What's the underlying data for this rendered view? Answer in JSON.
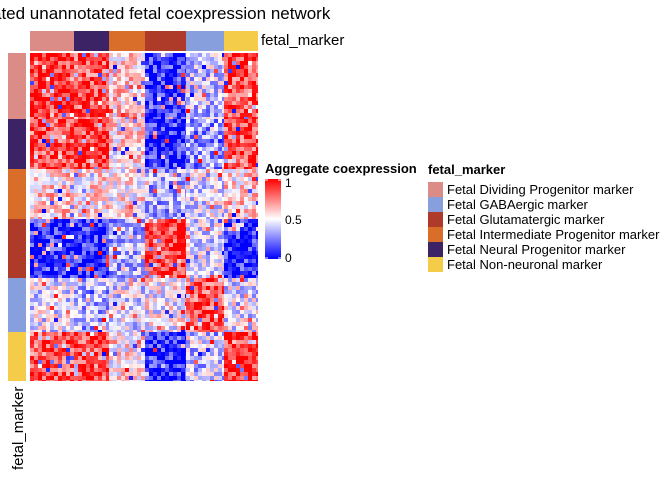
{
  "title": "ated unannotated fetal coexpression network",
  "annotation_label_top": "fetal_marker",
  "annotation_label_left": "fetal_marker",
  "colorbar": {
    "title": "Aggregate coexpression",
    "ticks": [
      "1",
      "0.5",
      "0"
    ],
    "colors": {
      "low": "#0000FF",
      "mid": "#FFFFFF",
      "high": "#FF0000"
    }
  },
  "legend": {
    "title": "fetal_marker",
    "items": [
      {
        "label": "Fetal Dividing Progenitor marker",
        "color": "#DB8C87"
      },
      {
        "label": "Fetal GABAergic marker",
        "color": "#889FDD"
      },
      {
        "label": "Fetal Glutamatergic marker",
        "color": "#AE3B2A"
      },
      {
        "label": "Fetal Intermediate Progenitor marker",
        "color": "#D96E2A"
      },
      {
        "label": "Fetal Neural Progenitor marker",
        "color": "#3C2366"
      },
      {
        "label": "Fetal Non-neuronal marker",
        "color": "#F5CB4A"
      }
    ]
  },
  "chart_data": {
    "type": "heatmap",
    "title": "ated unannotated fetal coexpression network",
    "value_range": [
      0,
      1
    ],
    "column_groups": [
      "Fetal Dividing Progenitor marker",
      "Fetal Neural Progenitor marker",
      "Fetal Intermediate Progenitor marker",
      "Fetal Glutamatergic marker",
      "Fetal GABAergic marker",
      "Fetal Non-neuronal marker"
    ],
    "row_groups": [
      "Fetal Dividing Progenitor marker",
      "Fetal Neural Progenitor marker",
      "Fetal Intermediate Progenitor marker",
      "Fetal Glutamatergic marker",
      "Fetal GABAergic marker",
      "Fetal Non-neuronal marker"
    ],
    "block_means": [
      [
        0.92,
        0.85,
        0.6,
        0.1,
        0.4,
        0.85
      ],
      [
        0.85,
        0.9,
        0.55,
        0.1,
        0.3,
        0.85
      ],
      [
        0.6,
        0.55,
        0.55,
        0.35,
        0.45,
        0.6
      ],
      [
        0.08,
        0.08,
        0.35,
        0.9,
        0.45,
        0.08
      ],
      [
        0.45,
        0.35,
        0.45,
        0.5,
        0.85,
        0.45
      ],
      [
        0.85,
        0.85,
        0.55,
        0.1,
        0.4,
        0.92
      ]
    ]
  }
}
